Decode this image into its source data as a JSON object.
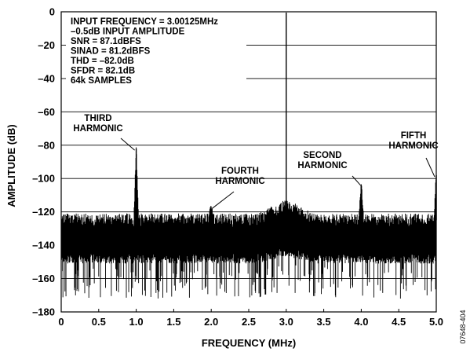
{
  "figure_id": "07648-404",
  "chart_data": {
    "type": "line",
    "title": "",
    "xlabel": "FREQUENCY (MHz)",
    "ylabel": "AMPLITUDE (dB)",
    "xlim": [
      0,
      5
    ],
    "ylim": [
      -180,
      0
    ],
    "x_ticks": [
      "0",
      "0.5",
      "1.0",
      "1.5",
      "2.0",
      "2.5",
      "3.0",
      "3.5",
      "4.0",
      "4.5",
      "5.0"
    ],
    "y_ticks": [
      "0",
      "–20",
      "–40",
      "–60",
      "–80",
      "–100",
      "–120",
      "–140",
      "–160",
      "–180"
    ],
    "grid": "horizontal",
    "info_box": [
      "INPUT FREQUENCY = 3.00125MHz",
      "–0.5dB INPUT AMPLITUDE",
      "SNR = 87.1dBFS",
      "SINAD = 81.2dBFS",
      "THD = –82.0dB",
      "SFDR = 82.1dB",
      "64k SAMPLES"
    ],
    "peaks": [
      {
        "x": 3.0,
        "y": -0.5
      },
      {
        "x": 1.0,
        "y": -82
      },
      {
        "x": 2.0,
        "y": -118
      },
      {
        "x": 4.0,
        "y": -104
      },
      {
        "x": 5.0,
        "y": -98
      }
    ],
    "noise_floor": {
      "typical_low": -145,
      "typical_high": -125,
      "min": -172
    },
    "annotations": [
      {
        "lines": [
          "THIRD",
          "HARMONIC"
        ],
        "x": 1.0,
        "y": -82
      },
      {
        "lines": [
          "FOURTH",
          "HARMONIC"
        ],
        "x": 2.0,
        "y": -118
      },
      {
        "lines": [
          "SECOND",
          "HARMONIC"
        ],
        "x": 4.0,
        "y": -104
      },
      {
        "lines": [
          "FIFTH",
          "HARMONIC"
        ],
        "x": 5.0,
        "y": -98
      }
    ]
  }
}
